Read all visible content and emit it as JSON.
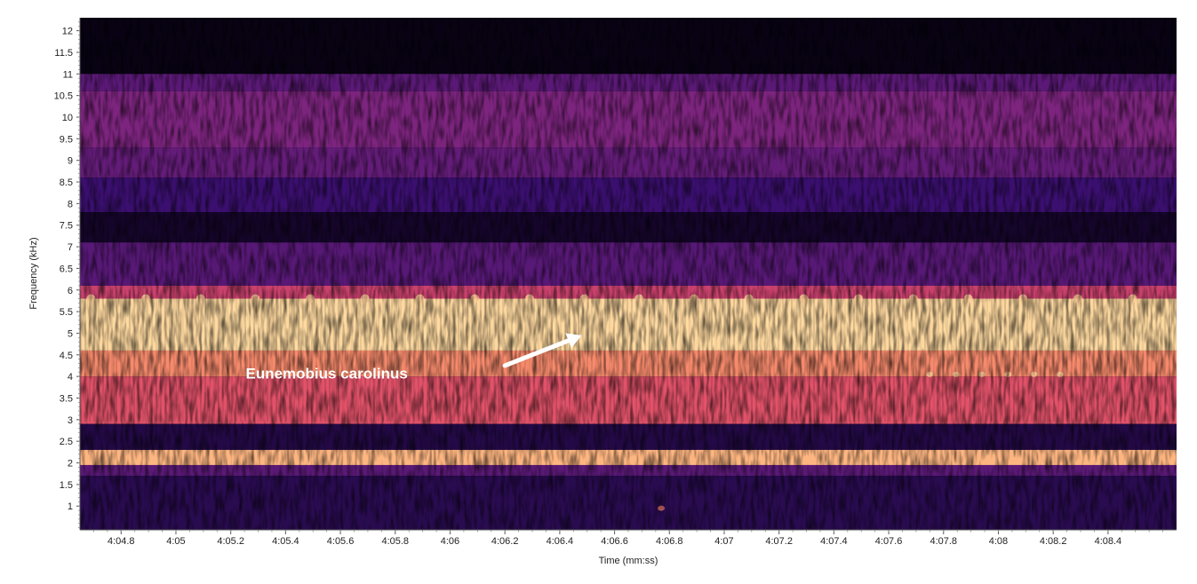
{
  "chart_data": {
    "type": "heatmap",
    "title": "",
    "xlabel": "Time (mm:ss)",
    "ylabel": "Frequency (kHz)",
    "xlim": [
      244.65,
      248.65
    ],
    "ylim": [
      0.45,
      12.3
    ],
    "x_ticks": [
      {
        "value": 244.8,
        "label": "4:04.8"
      },
      {
        "value": 245.0,
        "label": "4:05"
      },
      {
        "value": 245.2,
        "label": "4:05.2"
      },
      {
        "value": 245.4,
        "label": "4:05.4"
      },
      {
        "value": 245.6,
        "label": "4:05.6"
      },
      {
        "value": 245.8,
        "label": "4:05.8"
      },
      {
        "value": 246.0,
        "label": "4:06"
      },
      {
        "value": 246.2,
        "label": "4:06.2"
      },
      {
        "value": 246.4,
        "label": "4:06.4"
      },
      {
        "value": 246.6,
        "label": "4:06.6"
      },
      {
        "value": 246.8,
        "label": "4:06.8"
      },
      {
        "value": 247.0,
        "label": "4:07"
      },
      {
        "value": 247.2,
        "label": "4:07.2"
      },
      {
        "value": 247.4,
        "label": "4:07.4"
      },
      {
        "value": 247.6,
        "label": "4:07.6"
      },
      {
        "value": 247.8,
        "label": "4:07.8"
      },
      {
        "value": 248.0,
        "label": "4:08"
      },
      {
        "value": 248.2,
        "label": "4:08.2"
      },
      {
        "value": 248.4,
        "label": "4:08.4"
      }
    ],
    "y_ticks": [
      {
        "value": 1,
        "label": "1"
      },
      {
        "value": 1.5,
        "label": "1.5"
      },
      {
        "value": 2,
        "label": "2"
      },
      {
        "value": 2.5,
        "label": "2.5"
      },
      {
        "value": 3,
        "label": "3"
      },
      {
        "value": 3.5,
        "label": "3.5"
      },
      {
        "value": 4,
        "label": "4"
      },
      {
        "value": 4.5,
        "label": "4.5"
      },
      {
        "value": 5,
        "label": "5"
      },
      {
        "value": 5.5,
        "label": "5.5"
      },
      {
        "value": 6,
        "label": "6"
      },
      {
        "value": 6.5,
        "label": "6.5"
      },
      {
        "value": 7,
        "label": "7"
      },
      {
        "value": 7.5,
        "label": "7.5"
      },
      {
        "value": 8,
        "label": "8"
      },
      {
        "value": 8.5,
        "label": "8.5"
      },
      {
        "value": 9,
        "label": "9"
      },
      {
        "value": 9.5,
        "label": "9.5"
      },
      {
        "value": 10,
        "label": "10"
      },
      {
        "value": 10.5,
        "label": "10.5"
      },
      {
        "value": 11,
        "label": "11"
      },
      {
        "value": 11.5,
        "label": "11.5"
      },
      {
        "value": 12,
        "label": "12"
      }
    ],
    "energy_bands": [
      {
        "freq_low": 11.0,
        "freq_high": 12.3,
        "level": 0.03
      },
      {
        "freq_low": 10.6,
        "freq_high": 11.0,
        "level": 0.28
      },
      {
        "freq_low": 9.3,
        "freq_high": 10.6,
        "level": 0.36
      },
      {
        "freq_low": 8.6,
        "freq_high": 9.3,
        "level": 0.3
      },
      {
        "freq_low": 7.8,
        "freq_high": 8.6,
        "level": 0.2
      },
      {
        "freq_low": 7.1,
        "freq_high": 7.8,
        "level": 0.07
      },
      {
        "freq_low": 6.1,
        "freq_high": 7.1,
        "level": 0.27
      },
      {
        "freq_low": 5.8,
        "freq_high": 6.1,
        "level": 0.55
      },
      {
        "freq_low": 4.6,
        "freq_high": 5.8,
        "level": 0.92
      },
      {
        "freq_low": 4.0,
        "freq_high": 4.6,
        "level": 0.75
      },
      {
        "freq_low": 2.9,
        "freq_high": 4.0,
        "level": 0.62
      },
      {
        "freq_low": 2.3,
        "freq_high": 2.9,
        "level": 0.12
      },
      {
        "freq_low": 1.95,
        "freq_high": 2.3,
        "level": 0.85
      },
      {
        "freq_low": 1.7,
        "freq_high": 1.95,
        "level": 0.28
      },
      {
        "freq_low": 0.45,
        "freq_high": 1.7,
        "level": 0.14
      }
    ],
    "pulse_rows": [
      {
        "freq": 5.8,
        "start": 244.69,
        "interval": 0.2
      },
      {
        "freq": 4.05,
        "start": 247.75,
        "interval": 0.095
      },
      {
        "freq": 0.95,
        "start": 246.77,
        "interval": 1.0
      }
    ],
    "annotation": {
      "text": "Eunemobius carolinus",
      "text_x": 245.55,
      "text_y": 3.95,
      "arrow_from_x": 246.2,
      "arrow_from_y": 4.25,
      "arrow_to_x": 246.48,
      "arrow_to_y": 4.95
    },
    "colors": {
      "low": "#000004",
      "dark_purple": "#3b0f70",
      "purple": "#8c2981",
      "magenta": "#de4968",
      "orange": "#fe9f6d",
      "high": "#fcfdbf",
      "annotation": "#ffffff",
      "axis": "#555555"
    }
  }
}
